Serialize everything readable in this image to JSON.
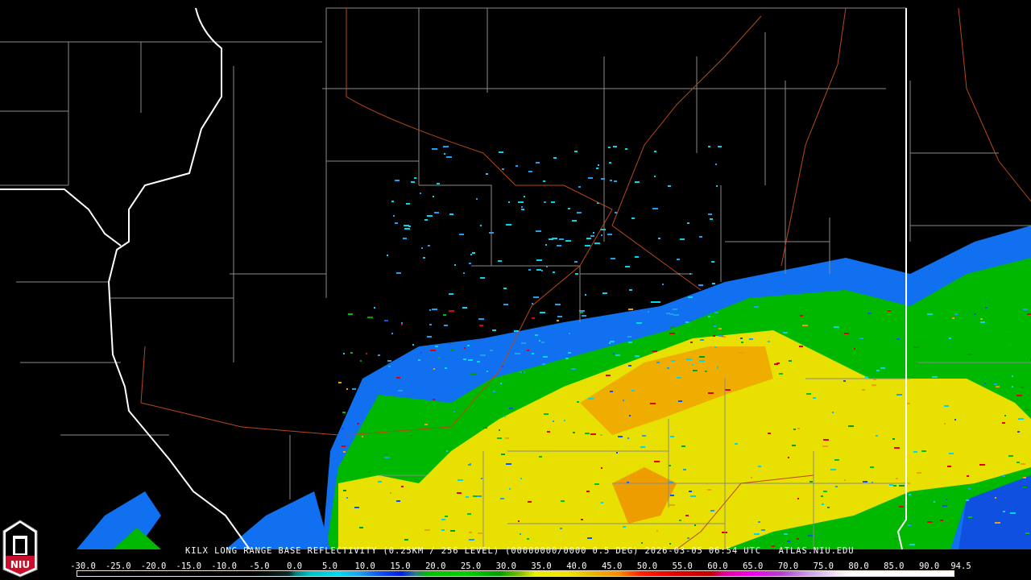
{
  "header": {
    "product_line": "KILX LONG RANGE BASE REFLECTIVITY (0.25KM / 256 LEVEL) (00000000/0000 0.5 DEG) 2026-03-05 06:54 UTC   ATLAS.NIU.EDU"
  },
  "logo": {
    "text": "NIU",
    "colors": {
      "red": "#c8102e",
      "white": "#ffffff",
      "black": "#000000"
    }
  },
  "colorbar": {
    "units_range": [
      -30.0,
      94.5
    ],
    "labels": [
      "-30.0",
      "-25.0",
      "-20.0",
      "-15.0",
      "-10.0",
      "-5.0",
      "0.0",
      "5.0",
      "10.0",
      "15.0",
      "20.0",
      "25.0",
      "30.0",
      "35.0",
      "40.0",
      "45.0",
      "50.0",
      "55.0",
      "60.0",
      "65.0",
      "70.0",
      "75.0",
      "80.0",
      "85.0",
      "90.0",
      "94.5"
    ],
    "stops": [
      {
        "value": -30,
        "color": "#000000"
      },
      {
        "value": -5,
        "color": "#000000"
      },
      {
        "value": 0,
        "color": "#0a2a2a"
      },
      {
        "value": 1,
        "color": "#0a7a7a"
      },
      {
        "value": 3,
        "color": "#00c0c0"
      },
      {
        "value": 7,
        "color": "#00d8f0"
      },
      {
        "value": 10,
        "color": "#1ea0f0"
      },
      {
        "value": 13,
        "color": "#1050f0"
      },
      {
        "value": 16,
        "color": "#0020e0"
      },
      {
        "value": 18,
        "color": "#2a7a8a"
      },
      {
        "value": 20,
        "color": "#00c000"
      },
      {
        "value": 25,
        "color": "#00d000"
      },
      {
        "value": 30,
        "color": "#00a000"
      },
      {
        "value": 33,
        "color": "#80c000"
      },
      {
        "value": 35,
        "color": "#e8f000"
      },
      {
        "value": 40,
        "color": "#f0e000"
      },
      {
        "value": 43,
        "color": "#e8b800"
      },
      {
        "value": 47,
        "color": "#ff8800"
      },
      {
        "value": 50,
        "color": "#ff2000"
      },
      {
        "value": 55,
        "color": "#e00000"
      },
      {
        "value": 60,
        "color": "#c00000"
      },
      {
        "value": 62,
        "color": "#e000a0"
      },
      {
        "value": 66,
        "color": "#f000f0"
      },
      {
        "value": 70,
        "color": "#b040d0"
      },
      {
        "value": 74,
        "color": "#c8a0e8"
      },
      {
        "value": 78,
        "color": "#f0e8f8"
      },
      {
        "value": 80,
        "color": "#ffffff"
      },
      {
        "value": 94.5,
        "color": "#ffffff"
      }
    ]
  },
  "map_colors": {
    "county": "#8a8a8a",
    "state": "#ffffff",
    "river": "#b8481a",
    "background": "#000000"
  }
}
